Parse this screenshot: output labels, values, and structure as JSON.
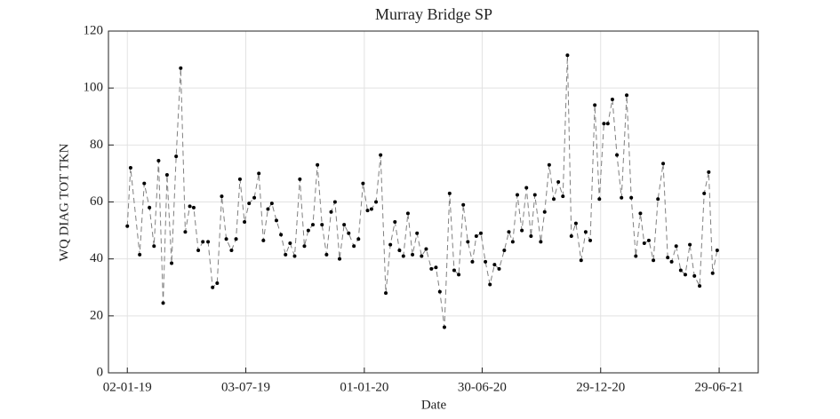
{
  "chart_data": {
    "type": "line",
    "title": "Murray Bridge SP",
    "xlabel": "Date",
    "ylabel": "WQ DIAG TOT TKN",
    "x": [
      "2019-01-02",
      "2019-01-07",
      "2019-01-21",
      "2019-01-28",
      "2019-02-05",
      "2019-02-12",
      "2019-02-19",
      "2019-02-26",
      "2019-03-04",
      "2019-03-11",
      "2019-03-18",
      "2019-03-25",
      "2019-04-01",
      "2019-04-08",
      "2019-04-14",
      "2019-04-21",
      "2019-04-28",
      "2019-05-06",
      "2019-05-13",
      "2019-05-20",
      "2019-05-27",
      "2019-06-03",
      "2019-06-11",
      "2019-06-18",
      "2019-06-24",
      "2019-07-01",
      "2019-07-08",
      "2019-07-16",
      "2019-07-23",
      "2019-07-30",
      "2019-08-06",
      "2019-08-12",
      "2019-08-19",
      "2019-08-26",
      "2019-09-02",
      "2019-09-09",
      "2019-09-16",
      "2019-09-24",
      "2019-10-01",
      "2019-10-07",
      "2019-10-14",
      "2019-10-21",
      "2019-10-28",
      "2019-11-04",
      "2019-11-11",
      "2019-11-17",
      "2019-11-24",
      "2019-12-01",
      "2019-12-08",
      "2019-12-16",
      "2019-12-23",
      "2019-12-30",
      "2020-01-06",
      "2020-01-12",
      "2020-01-19",
      "2020-01-26",
      "2020-02-03",
      "2020-02-10",
      "2020-02-17",
      "2020-02-24",
      "2020-03-01",
      "2020-03-08",
      "2020-03-15",
      "2020-03-22",
      "2020-03-29",
      "2020-04-05",
      "2020-04-13",
      "2020-04-20",
      "2020-04-26",
      "2020-05-03",
      "2020-05-11",
      "2020-05-18",
      "2020-05-25",
      "2020-06-01",
      "2020-06-08",
      "2020-06-15",
      "2020-06-21",
      "2020-06-28",
      "2020-07-05",
      "2020-07-12",
      "2020-07-19",
      "2020-07-26",
      "2020-08-03",
      "2020-08-10",
      "2020-08-16",
      "2020-08-23",
      "2020-08-30",
      "2020-09-06",
      "2020-09-13",
      "2020-09-19",
      "2020-09-28",
      "2020-10-04",
      "2020-10-11",
      "2020-10-18",
      "2020-10-25",
      "2020-11-01",
      "2020-11-08",
      "2020-11-14",
      "2020-11-21",
      "2020-11-29",
      "2020-12-06",
      "2020-12-13",
      "2020-12-20",
      "2020-12-27",
      "2021-01-03",
      "2021-01-09",
      "2021-01-16",
      "2021-01-23",
      "2021-01-30",
      "2021-02-07",
      "2021-02-14",
      "2021-02-21",
      "2021-02-28",
      "2021-03-06",
      "2021-03-13",
      "2021-03-20",
      "2021-03-27",
      "2021-04-04",
      "2021-04-11",
      "2021-04-17",
      "2021-04-24",
      "2021-05-01",
      "2021-05-08",
      "2021-05-15",
      "2021-05-22",
      "2021-05-30",
      "2021-06-06",
      "2021-06-13",
      "2021-06-19",
      "2021-06-26"
    ],
    "values": [
      51.5,
      72,
      41.5,
      66.5,
      58,
      44.5,
      74.5,
      24.5,
      69.5,
      38.5,
      76,
      107,
      49.5,
      58.5,
      58,
      43,
      46,
      46,
      30,
      31.5,
      62,
      47,
      43,
      47,
      68,
      53,
      59.5,
      61.5,
      70,
      46.5,
      57.5,
      59.5,
      53.5,
      48.5,
      41.5,
      45.5,
      41,
      68,
      44.5,
      50,
      52,
      73,
      52,
      41.5,
      56.5,
      60,
      40,
      52,
      49,
      44.5,
      47,
      66.5,
      57,
      57.5,
      60,
      76.5,
      28,
      45,
      53,
      43,
      41,
      56,
      41.5,
      49,
      41,
      43.5,
      36.5,
      37,
      28.5,
      16,
      63,
      36,
      34.5,
      59,
      46,
      39,
      48,
      49,
      39,
      31,
      38,
      36.5,
      43,
      49.5,
      46,
      62.5,
      50,
      65,
      48,
      62.5,
      46,
      56.5,
      73,
      61,
      67,
      62,
      111.5,
      48,
      52.5,
      39.5,
      49.5,
      46.5,
      94,
      61,
      87.5,
      87.5,
      96,
      76.5,
      61.5,
      97.5,
      61.5,
      41,
      56,
      45.5,
      46.5,
      39.5,
      61,
      73.5,
      40.5,
      39,
      44.5,
      36,
      34.5,
      45,
      34,
      30.5,
      63,
      70.5,
      35,
      43
    ],
    "color": "#000000",
    "line_color": "#808080",
    "line_style": "dashed",
    "xlim": [
      "2018-12-04",
      "2021-08-28"
    ],
    "xticks": [
      {
        "value": "2019-01-02",
        "label": "02-01-19"
      },
      {
        "value": "2019-07-03",
        "label": "03-07-19"
      },
      {
        "value": "2020-01-01",
        "label": "01-01-20"
      },
      {
        "value": "2020-06-30",
        "label": "30-06-20"
      },
      {
        "value": "2020-12-29",
        "label": "29-12-20"
      },
      {
        "value": "2021-06-29",
        "label": "29-06-21"
      }
    ],
    "ylim": [
      0,
      120
    ],
    "yticks": [
      0,
      20,
      40,
      60,
      80,
      100,
      120
    ],
    "grid": true
  }
}
